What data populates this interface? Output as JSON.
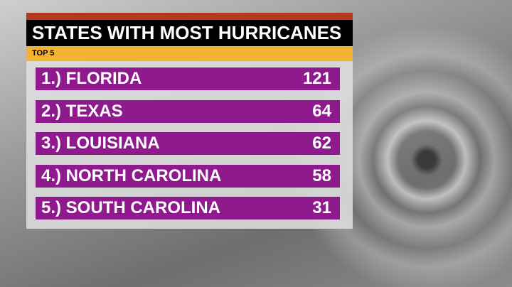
{
  "header": {
    "title": "STATES WITH MOST HURRICANES",
    "subtitle": "TOP 5"
  },
  "rows": [
    {
      "label": "1.) FLORIDA",
      "value": 121
    },
    {
      "label": "2.) TEXAS",
      "value": 64
    },
    {
      "label": "3.) LOUISIANA",
      "value": 62
    },
    {
      "label": "4.) NORTH CAROLINA",
      "value": 58
    },
    {
      "label": "5.) SOUTH CAROLINA",
      "value": 31
    }
  ]
}
